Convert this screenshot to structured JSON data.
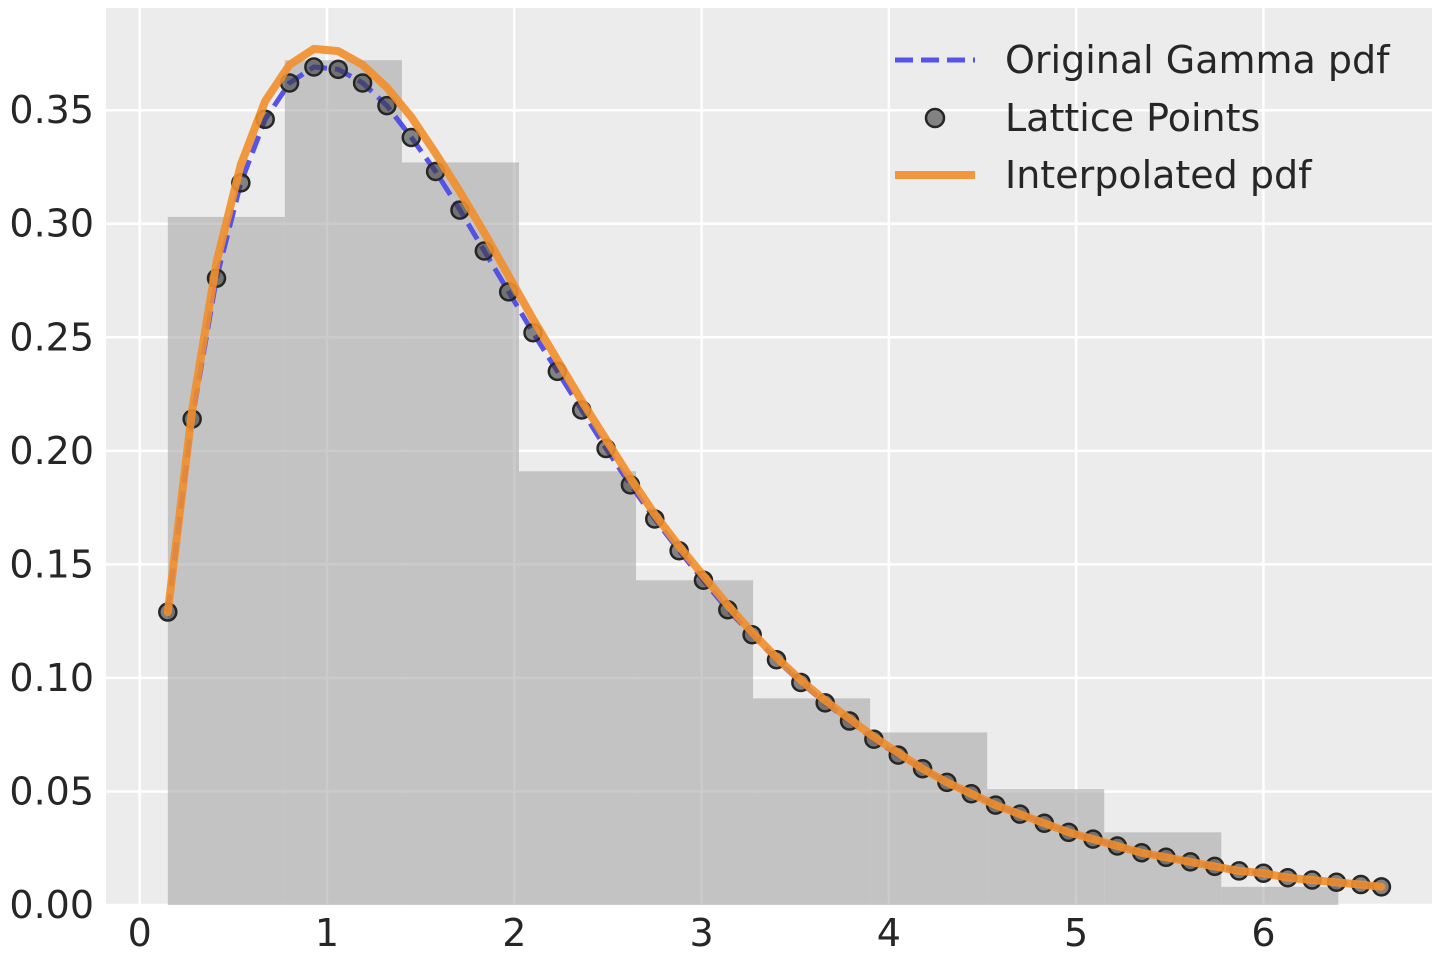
{
  "chart_data": {
    "type": "line",
    "title": "",
    "xlabel": "",
    "ylabel": "",
    "xlim": [
      -0.18,
      6.9
    ],
    "ylim": [
      0,
      0.395
    ],
    "grid": true,
    "legend_position": "top-right",
    "x_ticks": [
      0,
      1,
      2,
      3,
      4,
      5,
      6
    ],
    "x_tick_labels": [
      "0",
      "1",
      "2",
      "3",
      "4",
      "5",
      "6"
    ],
    "y_ticks": [
      0,
      0.05,
      0.1,
      0.15,
      0.2,
      0.25,
      0.3,
      0.35
    ],
    "y_tick_labels": [
      "0.00",
      "0.05",
      "0.10",
      "0.15",
      "0.20",
      "0.25",
      "0.30",
      "0.35"
    ],
    "histogram": {
      "bin_edges": [
        0.15,
        0.775,
        1.4,
        2.025,
        2.65,
        3.275,
        3.9,
        4.525,
        5.15,
        5.775,
        6.4
      ],
      "density": [
        0.303,
        0.372,
        0.327,
        0.191,
        0.143,
        0.091,
        0.076,
        0.051,
        0.032,
        0.008
      ]
    },
    "series": [
      {
        "name": "Original Gamma pdf",
        "style": "dashed",
        "color": "#4e4ce6",
        "x": [
          0.15,
          0.28,
          0.41,
          0.54,
          0.67,
          0.8,
          0.93,
          1.06,
          1.19,
          1.32,
          1.45,
          1.58,
          1.71,
          1.84,
          1.97,
          2.1,
          2.23,
          2.36,
          2.49,
          2.62,
          2.75,
          2.88,
          3.01,
          3.14,
          3.27,
          3.4,
          3.53,
          3.66,
          3.79,
          3.92,
          4.05,
          4.18,
          4.31,
          4.44,
          4.57,
          4.7,
          4.83,
          4.96,
          5.09,
          5.22,
          5.35,
          5.48,
          5.61,
          5.74,
          5.87,
          6.0,
          6.13,
          6.26,
          6.39,
          6.52,
          6.63
        ],
        "y": [
          0.129,
          0.214,
          0.276,
          0.318,
          0.346,
          0.362,
          0.369,
          0.368,
          0.362,
          0.352,
          0.338,
          0.323,
          0.306,
          0.288,
          0.27,
          0.252,
          0.235,
          0.218,
          0.201,
          0.185,
          0.17,
          0.156,
          0.143,
          0.13,
          0.119,
          0.108,
          0.098,
          0.089,
          0.081,
          0.073,
          0.066,
          0.06,
          0.054,
          0.049,
          0.044,
          0.04,
          0.036,
          0.032,
          0.029,
          0.026,
          0.023,
          0.021,
          0.019,
          0.017,
          0.015,
          0.014,
          0.012,
          0.011,
          0.01,
          0.009,
          0.008
        ]
      },
      {
        "name": "Lattice Points",
        "style": "markers",
        "color": "#3c3c3c",
        "x": [
          0.15,
          0.28,
          0.41,
          0.54,
          0.67,
          0.8,
          0.93,
          1.06,
          1.19,
          1.32,
          1.45,
          1.58,
          1.71,
          1.84,
          1.97,
          2.1,
          2.23,
          2.36,
          2.49,
          2.62,
          2.75,
          2.88,
          3.01,
          3.14,
          3.27,
          3.4,
          3.53,
          3.66,
          3.79,
          3.92,
          4.05,
          4.18,
          4.31,
          4.44,
          4.57,
          4.7,
          4.83,
          4.96,
          5.09,
          5.22,
          5.35,
          5.48,
          5.61,
          5.74,
          5.87,
          6.0,
          6.13,
          6.26,
          6.39,
          6.52,
          6.63
        ],
        "y": [
          0.129,
          0.214,
          0.276,
          0.318,
          0.346,
          0.362,
          0.369,
          0.368,
          0.362,
          0.352,
          0.338,
          0.323,
          0.306,
          0.288,
          0.27,
          0.252,
          0.235,
          0.218,
          0.201,
          0.185,
          0.17,
          0.156,
          0.143,
          0.13,
          0.119,
          0.108,
          0.098,
          0.089,
          0.081,
          0.073,
          0.066,
          0.06,
          0.054,
          0.049,
          0.044,
          0.04,
          0.036,
          0.032,
          0.029,
          0.026,
          0.023,
          0.021,
          0.019,
          0.017,
          0.015,
          0.014,
          0.012,
          0.011,
          0.01,
          0.009,
          0.008
        ]
      },
      {
        "name": "Interpolated pdf",
        "style": "solid",
        "color": "#f28e2b",
        "x": [
          0.15,
          0.28,
          0.41,
          0.54,
          0.67,
          0.8,
          0.93,
          1.06,
          1.19,
          1.32,
          1.45,
          1.58,
          1.71,
          1.84,
          1.97,
          2.1,
          2.23,
          2.36,
          2.49,
          2.62,
          2.75,
          2.88,
          3.01,
          3.14,
          3.27,
          3.4,
          3.53,
          3.66,
          3.79,
          3.92,
          4.05,
          4.18,
          4.31,
          4.44,
          4.57,
          4.7,
          4.83,
          4.96,
          5.09,
          5.22,
          5.35,
          5.48,
          5.61,
          5.74,
          5.87,
          6.0,
          6.13,
          6.26,
          6.39,
          6.52,
          6.63
        ],
        "y": [
          0.129,
          0.218,
          0.283,
          0.326,
          0.354,
          0.37,
          0.377,
          0.376,
          0.37,
          0.36,
          0.347,
          0.331,
          0.314,
          0.296,
          0.277,
          0.258,
          0.24,
          0.222,
          0.205,
          0.188,
          0.172,
          0.158,
          0.145,
          0.132,
          0.12,
          0.109,
          0.099,
          0.09,
          0.082,
          0.074,
          0.067,
          0.06,
          0.054,
          0.049,
          0.044,
          0.04,
          0.036,
          0.032,
          0.029,
          0.026,
          0.023,
          0.021,
          0.019,
          0.017,
          0.015,
          0.014,
          0.012,
          0.011,
          0.01,
          0.009,
          0.008
        ]
      }
    ]
  }
}
